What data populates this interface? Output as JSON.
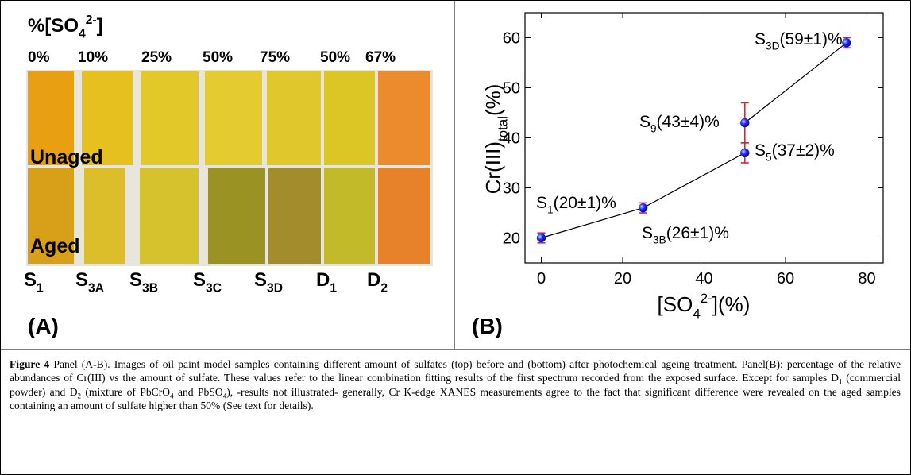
{
  "panel_a": {
    "heading": {
      "base": "%[SO",
      "sub": "4",
      "sup": "2-",
      "tail": "]"
    },
    "percentages": [
      "0%",
      "10%",
      "25%",
      "50%",
      "75%",
      "50%",
      "67%"
    ],
    "row_labels": [
      "Unaged",
      "Aged"
    ],
    "samples": [
      {
        "base": "S",
        "sub": "1"
      },
      {
        "base": "S",
        "sub": "3A"
      },
      {
        "base": "S",
        "sub": "3B"
      },
      {
        "base": "S",
        "sub": "3C"
      },
      {
        "base": "S",
        "sub": "3D"
      },
      {
        "base": "D",
        "sub": "1"
      },
      {
        "base": "D",
        "sub": "2"
      }
    ],
    "panel_label": "(A)"
  },
  "chart_data": {
    "type": "scatter-line",
    "panel_label": "(B)",
    "y_label": {
      "base": "Cr(III)",
      "sub": "total",
      "tail": "(%)"
    },
    "x_label": {
      "base": "[SO",
      "sub": "4",
      "sup": "2-",
      "tail": "](%)"
    },
    "x": [
      0,
      25,
      50,
      50,
      75
    ],
    "series": [
      {
        "values": [
          20,
          26,
          37,
          43,
          59
        ],
        "errors": [
          1,
          1,
          2,
          4,
          1
        ],
        "color": "#1f2bff",
        "error_color": "#e0202a"
      }
    ],
    "annotations": [
      {
        "base": "S",
        "sub": "1",
        "text": "(20±1)%"
      },
      {
        "base": "S",
        "sub": "3B",
        "text": "(26±1)%"
      },
      {
        "base": "S",
        "sub": "5",
        "text": "(37±2)%"
      },
      {
        "base": "S",
        "sub": "9",
        "text": "(43±4)%"
      },
      {
        "base": "S",
        "sub": "3D",
        "text": "(59±1)%"
      }
    ],
    "xlim": [
      -4,
      84
    ],
    "ylim": [
      15,
      65
    ],
    "xticks": [
      0,
      20,
      40,
      60,
      80
    ],
    "yticks": [
      20,
      30,
      40,
      50,
      60
    ]
  },
  "caption": {
    "label": "Figure 4",
    "runs": [
      " Panel (A-B). Images of oil paint model samples containing different amount of sulfates (top) before and (bottom) after photochemical ageing treatment. Panel(B): percentage of the relative abundances of Cr(III) vs the amount of sulfate. These values refer to the linear combination fitting results of the first spectrum recorded from the exposed surface. Except for samples D",
      "1",
      " (commercial powder) and D",
      "2",
      " (mixture of PbCrO",
      "4",
      " and PbSO",
      "4",
      "), -results not illustrated- generally, Cr K-edge XANES measurements agree to the fact that significant difference were revealed on the aged samples containing an amount of sulfate higher than 50% (See text for details)."
    ]
  }
}
